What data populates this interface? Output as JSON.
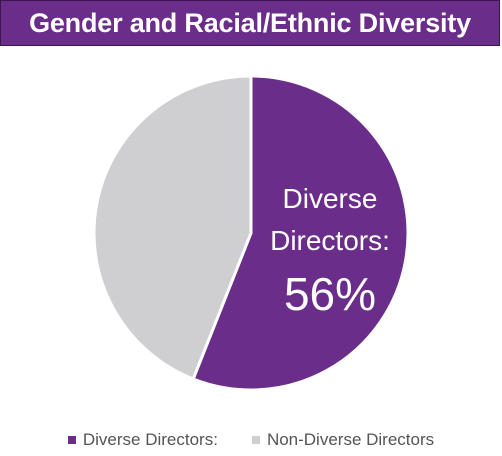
{
  "chart_data": {
    "type": "pie",
    "title": "Gender and Racial/Ethnic Diversity",
    "slices": [
      {
        "name": "Diverse Directors:",
        "value": 56,
        "color": "#6a2d8a",
        "label_line1": "Diverse",
        "label_line2": "Directors:",
        "label_value": "56%"
      },
      {
        "name": "Non-Diverse Directors",
        "value": 44,
        "color": "#cfcfd1"
      }
    ],
    "legend_placement": "bottom"
  }
}
